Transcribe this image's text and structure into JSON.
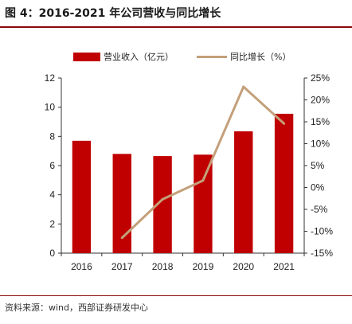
{
  "title": "图 4：2016-2021 年公司营收与同比增长",
  "source": "资料来源：wind，西部证券研发中心",
  "colors": {
    "bar": "#c00000",
    "line": "#c4a07a",
    "rule": "#8b0a0a"
  },
  "chart_data": {
    "type": "bar",
    "categories": [
      "2016",
      "2017",
      "2018",
      "2019",
      "2020",
      "2021"
    ],
    "series": [
      {
        "name": "营业收入（亿元）",
        "type": "bar",
        "axis": "left",
        "values": [
          7.7,
          6.8,
          6.65,
          6.75,
          8.35,
          9.55
        ]
      },
      {
        "name": "同比增长（%）",
        "type": "line",
        "axis": "right",
        "values": [
          null,
          -11.5,
          -2.7,
          1.6,
          23.0,
          14.6
        ]
      }
    ],
    "y_left": {
      "ylim": [
        0,
        12
      ],
      "ticks": [
        "0",
        "2",
        "4",
        "6",
        "8",
        "10",
        "12"
      ]
    },
    "y_right": {
      "ylim": [
        -15,
        25
      ],
      "ticks": [
        "-15%",
        "-10%",
        "-5%",
        "0%",
        "5%",
        "10%",
        "15%",
        "20%",
        "25%"
      ]
    },
    "legend_position": "top",
    "grid": false
  }
}
